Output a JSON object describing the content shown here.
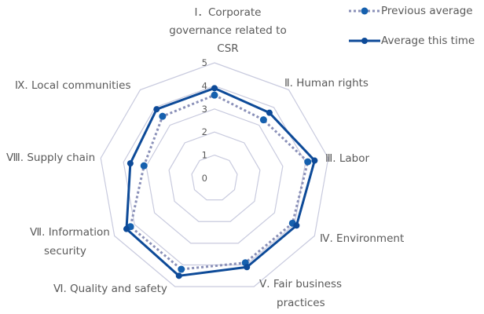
{
  "chart_data": {
    "type": "radar",
    "title": "",
    "axes": [
      "Ⅰ．Corporate governance related to CSR",
      "Ⅱ. Human rights",
      "Ⅲ. Labor",
      "Ⅳ. Environment",
      "Ⅴ. Fair business practices",
      "Ⅵ. Quality and safety",
      "Ⅶ. Information security",
      "Ⅷ. Supply chain",
      "Ⅸ. Local communities"
    ],
    "axis_label_lines": [
      [
        "Ⅰ．Corporate",
        "governance related to",
        "CSR"
      ],
      [
        "Ⅱ. Human rights"
      ],
      [
        "Ⅲ. Labor"
      ],
      [
        "Ⅳ. Environment"
      ],
      [
        "Ⅴ. Fair business",
        "practices"
      ],
      [
        "Ⅵ. Quality and safety"
      ],
      [
        "Ⅶ. Information",
        "security"
      ],
      [
        "Ⅷ. Supply chain"
      ],
      [
        "Ⅸ. Local communities"
      ]
    ],
    "series": [
      {
        "name": "Previous average",
        "style": "dotted",
        "line_color": "#8a90b8",
        "marker_color": "#1560ae",
        "values": [
          3.6,
          3.3,
          4.1,
          3.9,
          3.9,
          4.2,
          4.2,
          3.1,
          3.5
        ]
      },
      {
        "name": "Average this time",
        "style": "solid",
        "line_color": "#0d4a98",
        "marker_color": "#0d4a98",
        "values": [
          3.9,
          3.7,
          4.4,
          4.1,
          4.1,
          4.5,
          4.4,
          3.7,
          3.9
        ]
      }
    ],
    "rlim": [
      0,
      5
    ],
    "ticks": [
      "0",
      "1",
      "2",
      "3",
      "4",
      "5"
    ],
    "grid": true,
    "grid_color": "#c8cade",
    "legend_position": "top-right"
  },
  "legend": {
    "items": [
      {
        "label": "Previous average"
      },
      {
        "label": "Average this time"
      }
    ]
  }
}
